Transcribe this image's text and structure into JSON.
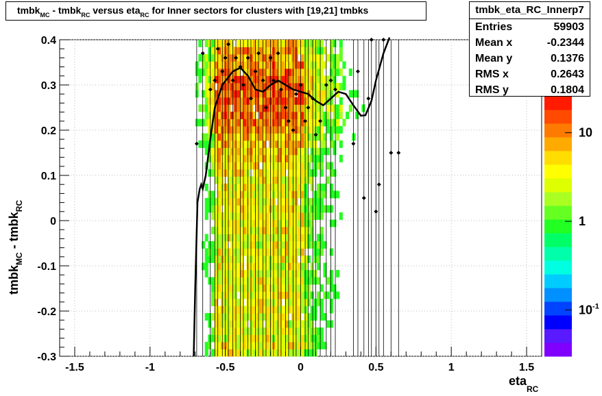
{
  "chart_data": {
    "type": "heatmap",
    "title_parts": [
      "tmbk",
      "MC",
      " - tmbk",
      "RC",
      " versus eta",
      "RC",
      " for Inner sectors for clusters with [19,21] tmbks"
    ],
    "xlabel": "eta",
    "xlabel_sub": "RC",
    "ylabel": "tmbk",
    "ylabel_sub1": "MC",
    "ylabel_mid": " - tmbk",
    "ylabel_sub2": "RC",
    "xlim": [
      -1.6,
      1.6
    ],
    "ylim": [
      -0.3,
      0.4
    ],
    "x_ticks": [
      "-1.5",
      "-1",
      "-0.5",
      "0",
      "0.5",
      "1",
      "1.5"
    ],
    "x_tick_values": [
      -1.5,
      -1,
      -0.5,
      0,
      0.5,
      1,
      1.5
    ],
    "y_ticks": [
      "-0.3",
      "-0.2",
      "-0.1",
      "0",
      "0.1",
      "0.2",
      "0.3",
      "0.4"
    ],
    "y_tick_values": [
      -0.3,
      -0.2,
      -0.1,
      0,
      0.1,
      0.2,
      0.3,
      0.4
    ],
    "grid": true,
    "log_z": true,
    "z_ticks": [
      "10",
      "1",
      "10"
    ],
    "z_tick_exponents": [
      "",
      "",
      "-1"
    ],
    "z_tick_values": [
      10,
      1,
      0.1
    ],
    "palette": [
      "#7f00ff",
      "#5a1aff",
      "#0000ff",
      "#0044ff",
      "#0090ff",
      "#00ccff",
      "#00ffe0",
      "#00ffaa",
      "#00ff66",
      "#22ff22",
      "#66ff22",
      "#aaff22",
      "#ddff00",
      "#ffff00",
      "#ffdd00",
      "#ffaa00",
      "#ff7a00",
      "#ff4a00",
      "#ff1a00"
    ],
    "bins": {
      "x_min": -0.7,
      "x_max": 0.66,
      "x_count": 64,
      "y_min": -0.3,
      "y_max": 0.4,
      "y_count": 44,
      "dense_lo": -0.57,
      "dense_hi": 0.02,
      "peak_y": 0.28
    },
    "profile_points": [
      {
        "x": -0.69,
        "y": 0.17
      },
      {
        "x": -0.65,
        "y": 0.37
      },
      {
        "x": -0.6,
        "y": 0.29
      },
      {
        "x": -0.57,
        "y": 0.31
      },
      {
        "x": -0.55,
        "y": 0.38
      },
      {
        "x": -0.52,
        "y": 0.33
      },
      {
        "x": -0.5,
        "y": 0.36
      },
      {
        "x": -0.48,
        "y": 0.39
      },
      {
        "x": -0.45,
        "y": 0.31
      },
      {
        "x": -0.43,
        "y": 0.36
      },
      {
        "x": -0.4,
        "y": 0.34
      },
      {
        "x": -0.38,
        "y": 0.3
      },
      {
        "x": -0.35,
        "y": 0.36
      },
      {
        "x": -0.33,
        "y": 0.27
      },
      {
        "x": -0.3,
        "y": 0.33
      },
      {
        "x": -0.28,
        "y": 0.37
      },
      {
        "x": -0.25,
        "y": 0.31
      },
      {
        "x": -0.23,
        "y": 0.25
      },
      {
        "x": -0.2,
        "y": 0.36
      },
      {
        "x": -0.18,
        "y": 0.31
      },
      {
        "x": -0.15,
        "y": 0.37
      },
      {
        "x": -0.13,
        "y": 0.29
      },
      {
        "x": -0.1,
        "y": 0.25
      },
      {
        "x": -0.08,
        "y": 0.22
      },
      {
        "x": -0.05,
        "y": 0.2
      },
      {
        "x": -0.03,
        "y": 0.28
      },
      {
        "x": 0.0,
        "y": 0.3
      },
      {
        "x": 0.03,
        "y": 0.22
      },
      {
        "x": 0.05,
        "y": 0.25
      },
      {
        "x": 0.08,
        "y": 0.27
      },
      {
        "x": 0.1,
        "y": 0.19
      },
      {
        "x": 0.13,
        "y": 0.22
      },
      {
        "x": 0.17,
        "y": 0.3
      },
      {
        "x": 0.2,
        "y": 0.31
      },
      {
        "x": 0.23,
        "y": 0.29
      },
      {
        "x": 0.35,
        "y": 0.17
      },
      {
        "x": 0.38,
        "y": 0.33
      },
      {
        "x": 0.42,
        "y": 0.05
      },
      {
        "x": 0.45,
        "y": 0.27
      },
      {
        "x": 0.47,
        "y": 0.4
      },
      {
        "x": 0.5,
        "y": 0.02
      },
      {
        "x": 0.52,
        "y": 0.08
      },
      {
        "x": 0.55,
        "y": 0.4
      },
      {
        "x": 0.6,
        "y": 0.15
      },
      {
        "x": 0.65,
        "y": 0.15
      }
    ],
    "fit_curve": [
      {
        "x": -0.71,
        "y": -0.3
      },
      {
        "x": -0.7,
        "y": -0.15
      },
      {
        "x": -0.685,
        "y": 0.04
      },
      {
        "x": -0.67,
        "y": 0.07
      },
      {
        "x": -0.66,
        "y": 0.08
      },
      {
        "x": -0.65,
        "y": 0.07
      },
      {
        "x": -0.63,
        "y": 0.1
      },
      {
        "x": -0.6,
        "y": 0.18
      },
      {
        "x": -0.57,
        "y": 0.25
      },
      {
        "x": -0.52,
        "y": 0.3
      },
      {
        "x": -0.45,
        "y": 0.33
      },
      {
        "x": -0.4,
        "y": 0.338
      },
      {
        "x": -0.35,
        "y": 0.32
      },
      {
        "x": -0.3,
        "y": 0.29
      },
      {
        "x": -0.25,
        "y": 0.285
      },
      {
        "x": -0.2,
        "y": 0.3
      },
      {
        "x": -0.15,
        "y": 0.31
      },
      {
        "x": -0.1,
        "y": 0.3
      },
      {
        "x": -0.05,
        "y": 0.29
      },
      {
        "x": 0.0,
        "y": 0.285
      },
      {
        "x": 0.05,
        "y": 0.28
      },
      {
        "x": 0.1,
        "y": 0.265
      },
      {
        "x": 0.15,
        "y": 0.255
      },
      {
        "x": 0.2,
        "y": 0.27
      },
      {
        "x": 0.25,
        "y": 0.285
      },
      {
        "x": 0.3,
        "y": 0.28
      },
      {
        "x": 0.35,
        "y": 0.255
      },
      {
        "x": 0.4,
        "y": 0.232
      },
      {
        "x": 0.43,
        "y": 0.233
      },
      {
        "x": 0.47,
        "y": 0.265
      },
      {
        "x": 0.5,
        "y": 0.31
      },
      {
        "x": 0.55,
        "y": 0.37
      },
      {
        "x": 0.59,
        "y": 0.405
      }
    ]
  },
  "stats": {
    "name": "tmbk_eta_RC_Innerp7",
    "rows": [
      {
        "label": "Entries",
        "value": "59903"
      },
      {
        "label": "Mean x",
        "value": "-0.2344"
      },
      {
        "label": "Mean y",
        "value": "0.1376"
      },
      {
        "label": "RMS x",
        "value": "0.2643"
      },
      {
        "label": "RMS y",
        "value": "0.1804"
      }
    ]
  }
}
